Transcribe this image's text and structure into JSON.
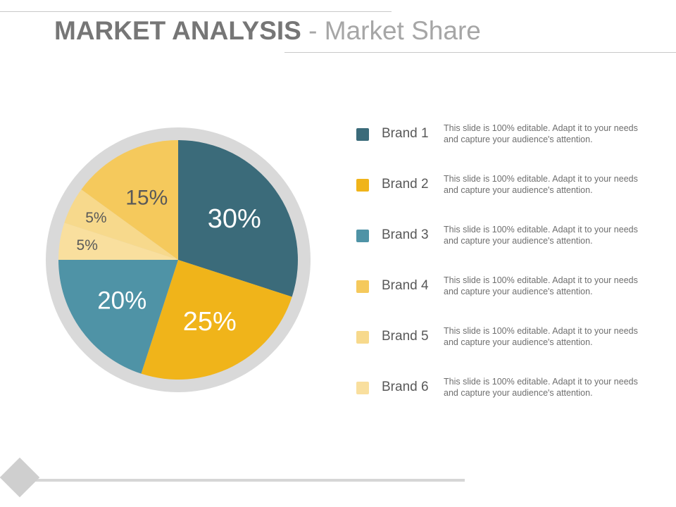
{
  "title": {
    "main": "MARKET ANALYSIS",
    "separator": " - ",
    "sub": "Market Share"
  },
  "colors": {
    "brand1": "#3b6b7a",
    "brand2": "#f0b41a",
    "brand3": "#4f93a6",
    "brand4": "#f5c95c",
    "brand5": "#f7d98c",
    "brand6": "#f9df9e",
    "ring": "#d9d9d9",
    "label_light": "#ffffff",
    "label_dark": "#595959"
  },
  "chart_data": {
    "type": "pie",
    "title": "",
    "categories": [
      "Brand 1",
      "Brand 2",
      "Brand 3",
      "Brand 4",
      "Brand 5",
      "Brand 6"
    ],
    "values": [
      30,
      25,
      20,
      15,
      5,
      5
    ],
    "labels": [
      "30%",
      "25%",
      "20%",
      "15%",
      "5%",
      "5%"
    ],
    "order_in_pie": [
      "Brand 1",
      "Brand 2",
      "Brand 3",
      "Brand 6",
      "Brand 5",
      "Brand 4"
    ],
    "start": "12 o'clock",
    "direction": "clockwise",
    "legend_placement": "right"
  },
  "legend": {
    "items": [
      {
        "name": "Brand 1",
        "desc": "This slide is 100% editable. Adapt it to your needs and capture your audience's attention.",
        "color": "#3b6b7a"
      },
      {
        "name": "Brand 2",
        "desc": "This slide is 100% editable. Adapt it to your needs and capture your audience's attention.",
        "color": "#f0b41a"
      },
      {
        "name": "Brand 3",
        "desc": "This slide is 100% editable. Adapt it to your needs and capture your audience's attention.",
        "color": "#4f93a6"
      },
      {
        "name": "Brand 4",
        "desc": "This slide is 100% editable. Adapt it to your needs and capture your audience's attention.",
        "color": "#f5c95c"
      },
      {
        "name": "Brand 5",
        "desc": "This slide is 100% editable. Adapt it to your needs and capture your audience's attention.",
        "color": "#f7d98c"
      },
      {
        "name": "Brand 6",
        "desc": "This slide is 100% editable. Adapt it to your needs and capture your audience's attention.",
        "color": "#f9df9e"
      }
    ]
  }
}
